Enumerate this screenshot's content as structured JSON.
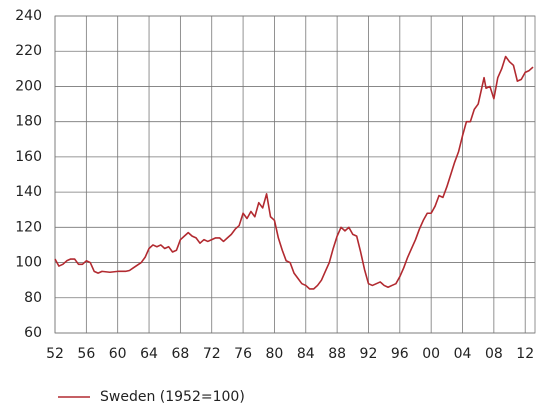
{
  "chart_data": {
    "type": "line",
    "x": [
      1952,
      1952.5,
      1953,
      1953.5,
      1954,
      1954.5,
      1955,
      1955.5,
      1956,
      1956.5,
      1957,
      1957.5,
      1958,
      1959,
      1960,
      1961,
      1961.5,
      1962,
      1963,
      1963.5,
      1964,
      1964.5,
      1965,
      1965.5,
      1966,
      1966.5,
      1967,
      1967.5,
      1968,
      1968.5,
      1969,
      1969.5,
      1970,
      1970.5,
      1971,
      1971.5,
      1972,
      1972.5,
      1973,
      1973.5,
      1974,
      1974.5,
      1975,
      1975.5,
      1976,
      1976.5,
      1977,
      1977.5,
      1978,
      1978.5,
      1979,
      1979.5,
      1980,
      1980.5,
      1981,
      1981.5,
      1982,
      1982.5,
      1983,
      1983.5,
      1984,
      1984.5,
      1985,
      1985.5,
      1986,
      1986.5,
      1987,
      1987.5,
      1988,
      1988.5,
      1989,
      1989.5,
      1990,
      1990.5,
      1991,
      1991.5,
      1992,
      1992.5,
      1993,
      1993.5,
      1994,
      1994.5,
      1995,
      1995.5,
      1996,
      1996.5,
      1997,
      1997.5,
      1998,
      1998.5,
      1999,
      1999.5,
      2000,
      2000.5,
      2001,
      2001.5,
      2002,
      2002.5,
      2003,
      2003.5,
      2004,
      2004.5,
      2005,
      2005.5,
      2006,
      2006.75,
      2007,
      2007.5,
      2008,
      2008.5,
      2009,
      2009.5,
      2010,
      2010.5,
      2011,
      2011.5,
      2012,
      2012.5,
      2013
    ],
    "series": [
      {
        "name": "Sweden (1952=100)",
        "color": "#b22a30",
        "values": [
          102,
          98,
          99,
          101,
          102,
          102,
          99,
          99,
          101,
          100,
          95,
          94,
          95,
          94.5,
          95,
          95,
          95.5,
          97,
          100,
          103,
          108,
          110,
          109,
          110,
          108,
          109,
          106,
          107,
          113,
          115,
          117,
          115,
          114,
          111,
          113,
          112,
          113,
          114,
          114,
          112,
          114,
          116,
          119,
          121,
          128,
          125,
          129,
          126,
          134,
          131,
          139,
          126,
          124,
          114,
          107,
          101,
          100,
          94,
          91,
          88,
          87,
          85,
          85,
          87,
          90,
          95,
          100,
          108,
          115,
          120,
          118,
          120,
          116,
          115,
          106,
          96,
          88,
          87,
          88,
          89,
          87,
          86,
          87,
          88,
          92,
          97,
          103,
          108,
          113,
          119,
          124,
          128,
          128,
          132,
          138,
          137,
          143,
          150,
          157,
          163,
          172,
          180,
          180,
          187,
          190,
          205,
          199,
          200,
          193,
          205,
          210,
          217,
          214,
          212,
          203,
          204,
          208,
          209,
          211
        ]
      }
    ],
    "xlim": [
      1952,
      2013.25
    ],
    "xticks": [
      {
        "value": 1952,
        "label": "52"
      },
      {
        "value": 1956,
        "label": "56"
      },
      {
        "value": 1960,
        "label": "60"
      },
      {
        "value": 1964,
        "label": "64"
      },
      {
        "value": 1968,
        "label": "68"
      },
      {
        "value": 1972,
        "label": "72"
      },
      {
        "value": 1976,
        "label": "76"
      },
      {
        "value": 1980,
        "label": "80"
      },
      {
        "value": 1984,
        "label": "84"
      },
      {
        "value": 1988,
        "label": "88"
      },
      {
        "value": 1992,
        "label": "92"
      },
      {
        "value": 1996,
        "label": "96"
      },
      {
        "value": 2000,
        "label": "00"
      },
      {
        "value": 2004,
        "label": "04"
      },
      {
        "value": 2008,
        "label": "08"
      },
      {
        "value": 2012,
        "label": "12"
      }
    ],
    "ylim": [
      60,
      240
    ],
    "yticks": [
      60,
      80,
      100,
      120,
      140,
      160,
      180,
      200,
      220,
      240
    ],
    "grid": true,
    "legend": "bottom-left"
  }
}
